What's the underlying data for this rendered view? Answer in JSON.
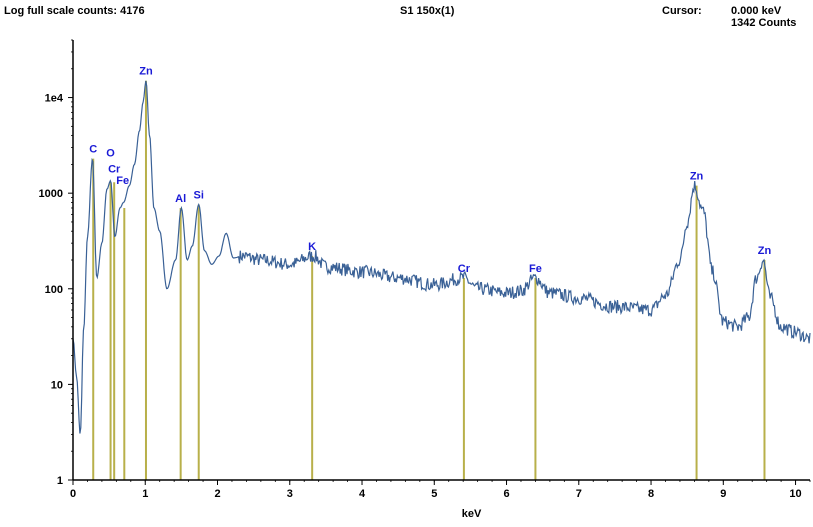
{
  "header": {
    "scale_label": "Log full scale counts: 4176",
    "sample_label": "S1 150x(1)",
    "cursor_label": "Cursor:",
    "cursor_kev": "0.000 keV",
    "cursor_counts": "1342  Counts"
  },
  "colors": {
    "spectrum": "#3a6196",
    "marker": "#b8b04a",
    "element_label": "#1a1ad6",
    "axis": "#000000"
  },
  "chart_data": {
    "type": "line",
    "xlabel": "keV",
    "ylabel": "",
    "x_scale": "linear",
    "y_scale": "log",
    "xlim": [
      0,
      10.2
    ],
    "ylim": [
      1,
      40000
    ],
    "grid": false,
    "x_ticks": [
      0,
      1,
      2,
      3,
      4,
      5,
      6,
      7,
      8,
      9,
      10
    ],
    "x_tick_labels": [
      "0",
      "1",
      "2",
      "3",
      "4",
      "5",
      "6",
      "7",
      "8",
      "9",
      "10"
    ],
    "y_ticks": [
      1,
      10,
      100,
      1000,
      10000
    ],
    "y_tick_labels": [
      "1",
      "10",
      "100",
      "1000",
      "1e4"
    ],
    "series": [
      {
        "x": [
          0.0,
          0.05,
          0.1,
          0.15,
          0.2,
          0.27,
          0.33,
          0.4,
          0.47,
          0.52,
          0.58,
          0.65,
          0.7,
          0.78,
          0.85,
          0.92,
          0.97,
          1.01,
          1.06,
          1.12,
          1.2,
          1.3,
          1.42,
          1.5,
          1.58,
          1.65,
          1.74,
          1.82,
          1.92,
          2.02,
          2.12,
          2.22,
          2.35,
          2.6,
          3.0,
          3.33,
          3.5,
          4.0,
          4.5,
          5.0,
          5.4,
          5.6,
          6.0,
          6.2,
          6.4,
          6.6,
          7.0,
          7.5,
          8.0,
          8.2,
          8.4,
          8.5,
          8.6,
          8.72,
          8.85,
          9.0,
          9.2,
          9.35,
          9.46,
          9.55,
          9.65,
          9.8,
          10.0,
          10.2
        ],
        "y": [
          30,
          12,
          3,
          40,
          350,
          2300,
          130,
          300,
          1100,
          1350,
          350,
          700,
          800,
          1200,
          2000,
          4500,
          9000,
          15000,
          4000,
          700,
          400,
          100,
          200,
          700,
          200,
          280,
          760,
          250,
          180,
          220,
          380,
          210,
          220,
          200,
          180,
          220,
          170,
          150,
          130,
          110,
          130,
          100,
          90,
          95,
          130,
          90,
          80,
          65,
          60,
          85,
          200,
          500,
          1200,
          650,
          150,
          45,
          40,
          50,
          130,
          200,
          80,
          40,
          35,
          30
        ]
      }
    ],
    "markers": [
      {
        "label": "C",
        "x": 0.28,
        "peak": 2300
      },
      {
        "label": "O",
        "x": 0.52,
        "peak": 1300
      },
      {
        "label": "Cr",
        "x": 0.57,
        "peak": 1300
      },
      {
        "label": "Fe",
        "x": 0.71,
        "peak": 700
      },
      {
        "label": "Zn",
        "x": 1.01,
        "peak": 15000
      },
      {
        "label": "Al",
        "x": 1.49,
        "peak": 700
      },
      {
        "label": "Si",
        "x": 1.74,
        "peak": 760
      },
      {
        "label": "K",
        "x": 3.31,
        "peak": 220
      },
      {
        "label": "Cr",
        "x": 5.41,
        "peak": 130
      },
      {
        "label": "Fe",
        "x": 6.4,
        "peak": 130
      },
      {
        "label": "Zn",
        "x": 8.63,
        "peak": 1200
      },
      {
        "label": "Zn",
        "x": 9.57,
        "peak": 200
      }
    ]
  }
}
